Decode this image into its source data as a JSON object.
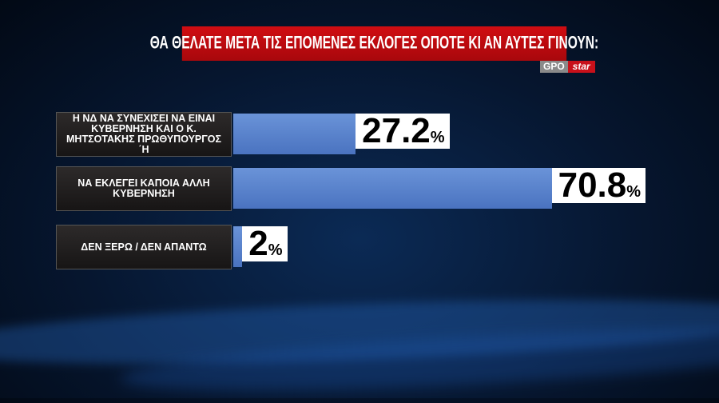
{
  "title": "ΘΑ ΘΕΛΑΤΕ ΜΕΤΑ ΤΙΣ ΕΠΟΜΕΝΕΣ ΕΚΛΟΓΕΣ ΟΠΟΤΕ ΚΙ ΑΝ ΑΥΤΕΣ ΓΙΝΟΥΝ:",
  "logo": {
    "gpo": "GPO",
    "star": "star"
  },
  "colors": {
    "title_bar": "#c8101a",
    "bar": "#5a83cc",
    "value_box": "#ffffff",
    "label_box": "#201e1e"
  },
  "chart_data": {
    "type": "bar",
    "orientation": "horizontal",
    "title": "ΘΑ ΘΕΛΑΤΕ ΜΕΤΑ ΤΙΣ ΕΠΟΜΕΝΕΣ ΕΚΛΟΓΕΣ ΟΠΟΤΕ ΚΙ ΑΝ ΑΥΤΕΣ ΓΙΝΟΥΝ:",
    "categories": [
      "Η ΝΔ ΝΑ ΣΥΝΕΧΙΣΕΙ ΝΑ ΕΙΝΑΙ ΚΥΒΕΡΝΗΣΗ ΚΑΙ Ο Κ. ΜΗΤΣΟΤΑΚΗΣ ΠΡΩΘΥΠΟΥΡΓΟΣ ΄Η",
      "ΝΑ ΕΚΛΕΓΕΙ ΚΑΠΟΙΑ ΑΛΛΗ ΚΥΒΕΡΝΗΣΗ",
      "ΔΕΝ ΞΕΡΩ / ΔΕΝ ΑΠΑΝΤΩ"
    ],
    "values": [
      27.2,
      70.8,
      2
    ],
    "value_labels": [
      "27.2",
      "70.8",
      "2"
    ],
    "unit": "%",
    "grid": false
  }
}
